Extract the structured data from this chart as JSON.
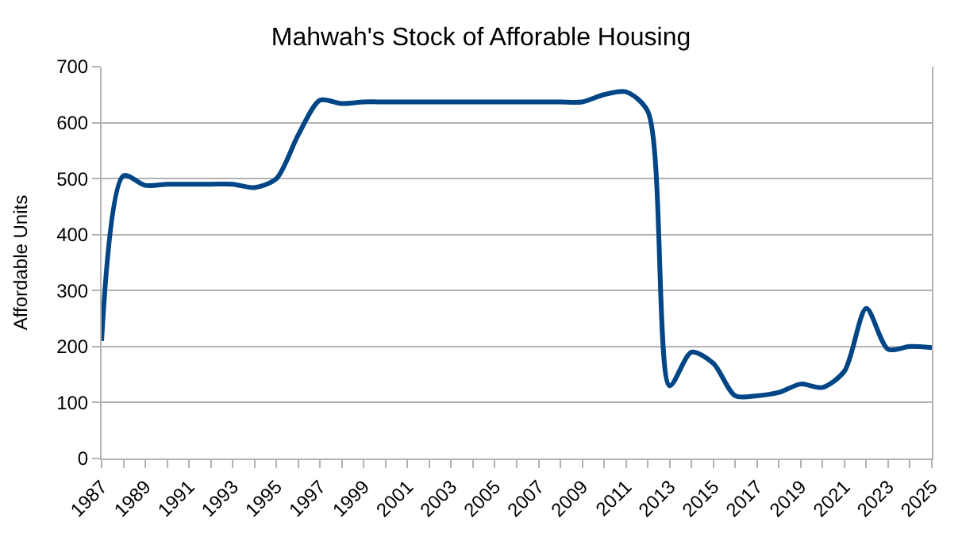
{
  "chart_data": {
    "type": "line",
    "title": "Mahwah's Stock of Afforable Housing",
    "ylabel": "Affordable Units",
    "x": [
      1987,
      1988,
      1989,
      1990,
      1991,
      1992,
      1993,
      1994,
      1995,
      1996,
      1997,
      1998,
      1999,
      2000,
      2001,
      2002,
      2003,
      2004,
      2005,
      2006,
      2007,
      2008,
      2009,
      2010,
      2011,
      2012,
      2013,
      2014,
      2015,
      2016,
      2017,
      2018,
      2019,
      2020,
      2021,
      2022,
      2023,
      2024,
      2025
    ],
    "series": [
      {
        "color": "#004586",
        "values": [
          210,
          505,
          488,
          490,
          490,
          490,
          490,
          484,
          500,
          578,
          640,
          634,
          637,
          637,
          637,
          637,
          637,
          637,
          637,
          637,
          637,
          637,
          637,
          650,
          655,
          620,
          130,
          190,
          170,
          112,
          112,
          118,
          133,
          127,
          156,
          268,
          195,
          200,
          198
        ]
      }
    ],
    "xlim": [
      1987,
      2025
    ],
    "xticks": [
      1987,
      {
        "value": 1988,
        "label": null
      },
      1989,
      {
        "value": 1990,
        "label": null
      },
      1991,
      {
        "value": 1992,
        "label": null
      },
      1993,
      {
        "value": 1994,
        "label": null
      },
      1995,
      {
        "value": 1996,
        "label": null
      },
      1997,
      {
        "value": 1998,
        "label": null
      },
      1999,
      {
        "value": 2000,
        "label": null
      },
      2001,
      {
        "value": 2002,
        "label": null
      },
      2003,
      {
        "value": 2004,
        "label": null
      },
      2005,
      {
        "value": 2006,
        "label": null
      },
      2007,
      {
        "value": 2008,
        "label": null
      },
      2009,
      {
        "value": 2010,
        "label": null
      },
      2011,
      {
        "value": 2012,
        "label": null
      },
      2013,
      {
        "value": 2014,
        "label": null
      },
      2015,
      {
        "value": 2016,
        "label": null
      },
      2017,
      {
        "value": 2018,
        "label": null
      },
      2019,
      {
        "value": 2020,
        "label": null
      },
      2021,
      {
        "value": 2022,
        "label": null
      },
      2023,
      {
        "value": 2024,
        "label": null
      },
      2025
    ],
    "ylim": [
      0,
      700
    ],
    "yticks": [
      0,
      100,
      200,
      300,
      400,
      500,
      600,
      700
    ],
    "grid": "y",
    "marker": "none",
    "line_style": "solid"
  }
}
